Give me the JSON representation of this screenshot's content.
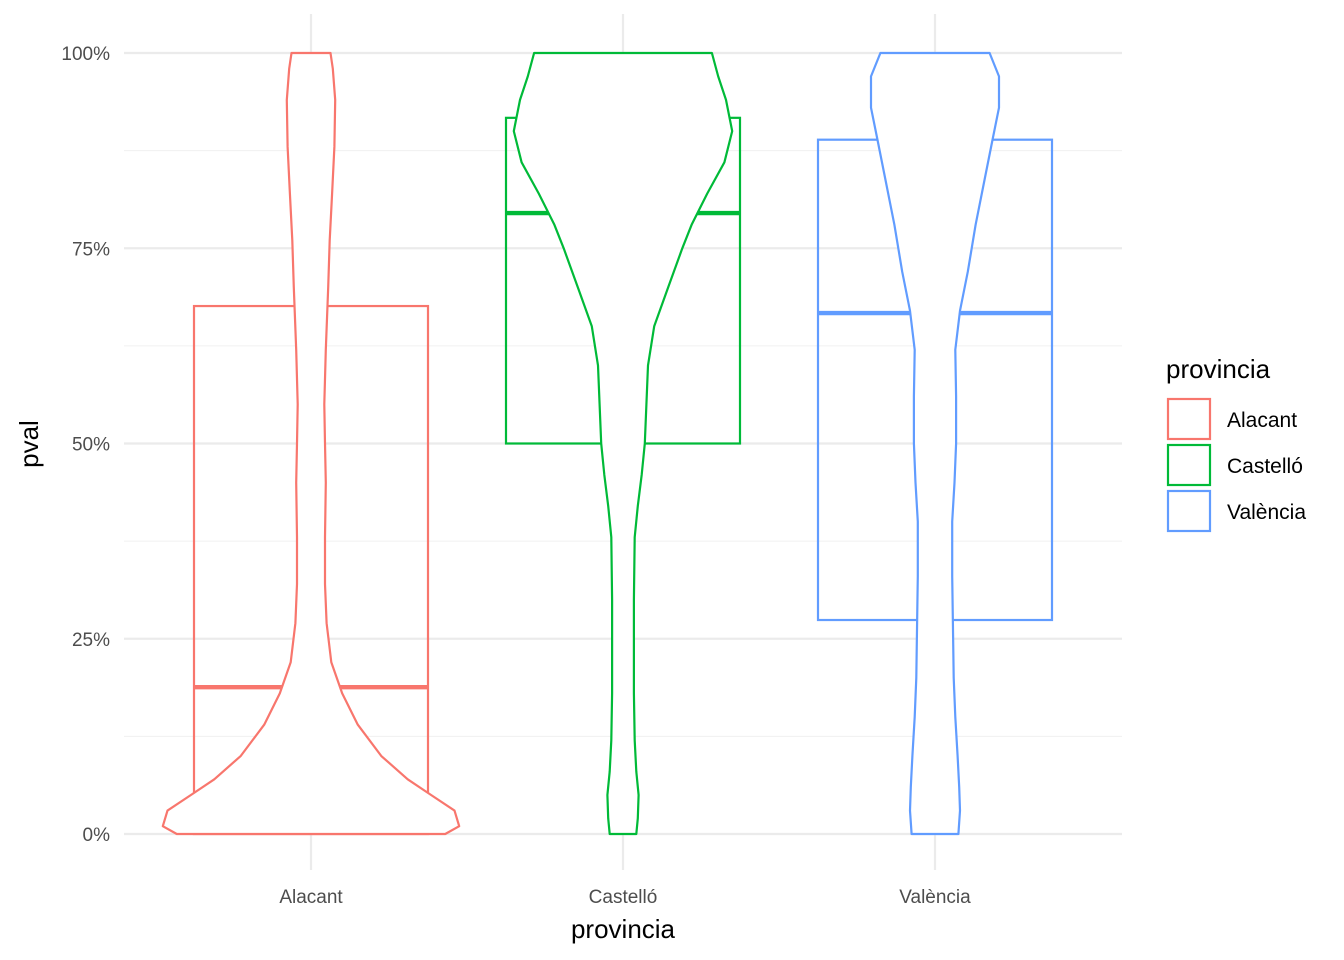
{
  "chart_data": {
    "type": "violin+box",
    "title": "",
    "xlabel": "provincia",
    "ylabel": "pval",
    "ylim": [
      0,
      1
    ],
    "y_ticks": [
      {
        "value": 0,
        "label": "0%"
      },
      {
        "value": 0.25,
        "label": "25%"
      },
      {
        "value": 0.5,
        "label": "50%"
      },
      {
        "value": 0.75,
        "label": "75%"
      },
      {
        "value": 1,
        "label": "100%"
      }
    ],
    "grid": true,
    "legend": {
      "title": "provincia",
      "position": "right"
    },
    "categories": [
      "Alacant",
      "Castelló",
      "València"
    ],
    "series": [
      {
        "name": "Alacant",
        "color": "#F8766D",
        "box": {
          "q1": 0.0,
          "median": 0.188,
          "q3": 0.676
        },
        "violin_halfwidth": [
          [
            0.0,
            0.86
          ],
          [
            0.01,
            0.95
          ],
          [
            0.03,
            0.92
          ],
          [
            0.05,
            0.77
          ],
          [
            0.07,
            0.62
          ],
          [
            0.1,
            0.45
          ],
          [
            0.14,
            0.3
          ],
          [
            0.18,
            0.2
          ],
          [
            0.22,
            0.13
          ],
          [
            0.27,
            0.1
          ],
          [
            0.32,
            0.09
          ],
          [
            0.38,
            0.09
          ],
          [
            0.45,
            0.095
          ],
          [
            0.5,
            0.09
          ],
          [
            0.55,
            0.085
          ],
          [
            0.62,
            0.095
          ],
          [
            0.7,
            0.11
          ],
          [
            0.76,
            0.12
          ],
          [
            0.82,
            0.135
          ],
          [
            0.88,
            0.15
          ],
          [
            0.94,
            0.155
          ],
          [
            0.98,
            0.14
          ],
          [
            1.0,
            0.125
          ]
        ]
      },
      {
        "name": "Castelló",
        "color": "#00BA38",
        "box": {
          "q1": 0.5,
          "median": 0.795,
          "q3": 0.917
        },
        "violin_halfwidth": [
          [
            0.0,
            0.085
          ],
          [
            0.02,
            0.095
          ],
          [
            0.05,
            0.1
          ],
          [
            0.08,
            0.085
          ],
          [
            0.12,
            0.075
          ],
          [
            0.18,
            0.07
          ],
          [
            0.25,
            0.07
          ],
          [
            0.3,
            0.07
          ],
          [
            0.38,
            0.075
          ],
          [
            0.42,
            0.095
          ],
          [
            0.46,
            0.12
          ],
          [
            0.5,
            0.14
          ],
          [
            0.55,
            0.15
          ],
          [
            0.6,
            0.16
          ],
          [
            0.65,
            0.2
          ],
          [
            0.7,
            0.29
          ],
          [
            0.75,
            0.38
          ],
          [
            0.78,
            0.44
          ],
          [
            0.82,
            0.54
          ],
          [
            0.86,
            0.65
          ],
          [
            0.9,
            0.7
          ],
          [
            0.94,
            0.66
          ],
          [
            0.97,
            0.61
          ],
          [
            1.0,
            0.57
          ]
        ]
      },
      {
        "name": "València",
        "color": "#619CFF",
        "box": {
          "q1": 0.274,
          "median": 0.667,
          "q3": 0.889
        },
        "violin_halfwidth": [
          [
            0.0,
            0.15
          ],
          [
            0.03,
            0.16
          ],
          [
            0.06,
            0.155
          ],
          [
            0.1,
            0.145
          ],
          [
            0.15,
            0.13
          ],
          [
            0.2,
            0.12
          ],
          [
            0.27,
            0.115
          ],
          [
            0.33,
            0.11
          ],
          [
            0.4,
            0.11
          ],
          [
            0.45,
            0.125
          ],
          [
            0.5,
            0.135
          ],
          [
            0.56,
            0.135
          ],
          [
            0.62,
            0.13
          ],
          [
            0.67,
            0.16
          ],
          [
            0.72,
            0.21
          ],
          [
            0.78,
            0.26
          ],
          [
            0.84,
            0.32
          ],
          [
            0.89,
            0.37
          ],
          [
            0.93,
            0.41
          ],
          [
            0.97,
            0.41
          ],
          [
            1.0,
            0.35
          ]
        ]
      }
    ]
  }
}
